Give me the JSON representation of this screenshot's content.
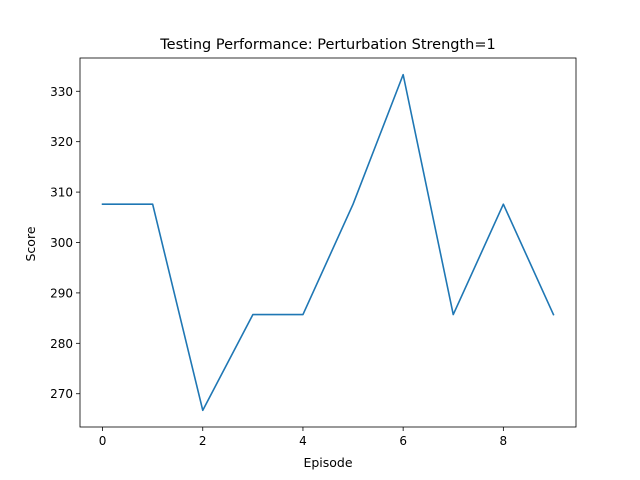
{
  "chart_data": {
    "type": "line",
    "title": "Testing Performance: Perturbation Strength=1",
    "xlabel": "Episode",
    "ylabel": "Score",
    "x": [
      0,
      1,
      2,
      3,
      4,
      5,
      6,
      7,
      8,
      9
    ],
    "series": [
      {
        "values": [
          307.6,
          307.6,
          266.7,
          285.7,
          285.7,
          307.6,
          333.3,
          285.7,
          307.6,
          285.7
        ],
        "color": "#1f77b4"
      }
    ],
    "xlim": [
      -0.45,
      9.45
    ],
    "ylim": [
      263.4,
      336.6
    ],
    "xticks": [
      0,
      2,
      4,
      6,
      8
    ],
    "yticks": [
      270,
      280,
      290,
      300,
      310,
      320,
      330
    ],
    "grid": false,
    "legend": "none"
  }
}
